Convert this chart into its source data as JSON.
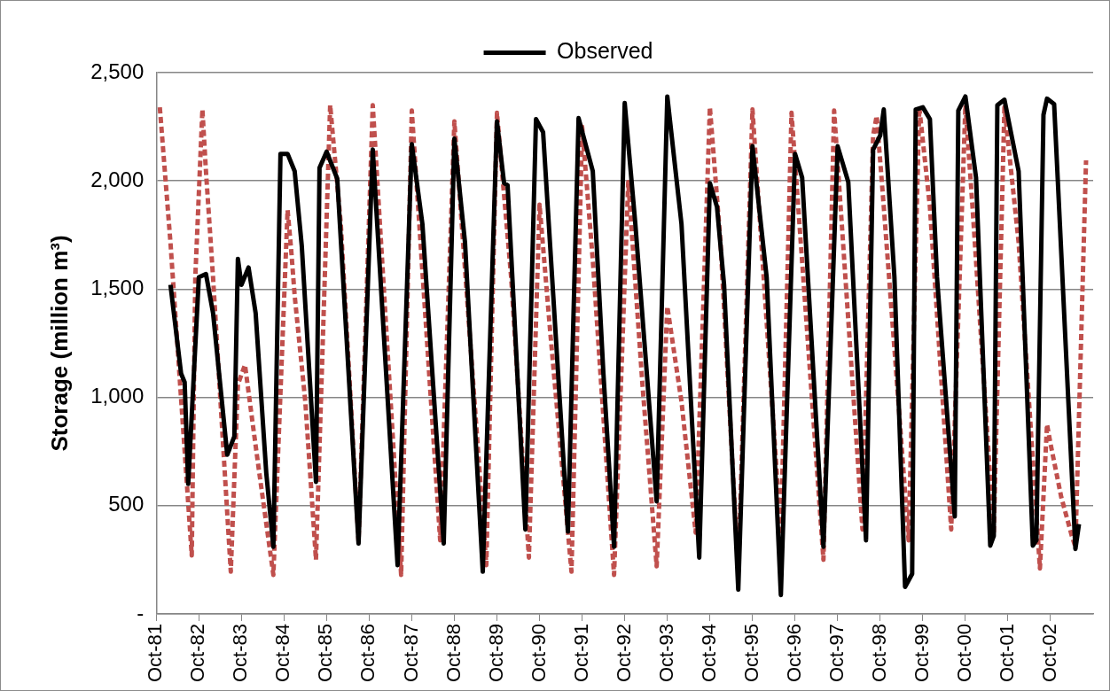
{
  "chart_data": {
    "type": "line",
    "ylabel": "Storage (million m³)",
    "legend": "top",
    "grid": "y",
    "marker": "none",
    "xlim": [
      "1981-10",
      "2003-10"
    ],
    "xticks": [
      {
        "value": "1981-10",
        "label": "Oct-81"
      },
      {
        "value": "1982-10",
        "label": "Oct-82"
      },
      {
        "value": "1983-10",
        "label": "Oct-83"
      },
      {
        "value": "1984-10",
        "label": "Oct-84"
      },
      {
        "value": "1985-10",
        "label": "Oct-85"
      },
      {
        "value": "1986-10",
        "label": "Oct-86"
      },
      {
        "value": "1987-10",
        "label": "Oct-87"
      },
      {
        "value": "1988-10",
        "label": "Oct-88"
      },
      {
        "value": "1989-10",
        "label": "Oct-89"
      },
      {
        "value": "1990-10",
        "label": "Oct-90"
      },
      {
        "value": "1991-10",
        "label": "Oct-91"
      },
      {
        "value": "1992-10",
        "label": "Oct-92"
      },
      {
        "value": "1993-10",
        "label": "Oct-93"
      },
      {
        "value": "1994-10",
        "label": "Oct-94"
      },
      {
        "value": "1995-10",
        "label": "Oct-95"
      },
      {
        "value": "1996-10",
        "label": "Oct-96"
      },
      {
        "value": "1997-10",
        "label": "Oct-97"
      },
      {
        "value": "1998-10",
        "label": "Oct-98"
      },
      {
        "value": "1999-10",
        "label": "Oct-99"
      },
      {
        "value": "2000-10",
        "label": "Oct-00"
      },
      {
        "value": "2001-10",
        "label": "Oct-01"
      },
      {
        "value": "2002-10",
        "label": "Oct-02"
      }
    ],
    "ylim": [
      0,
      2500
    ],
    "yticks": [
      {
        "value": 0,
        "label": "-"
      },
      500,
      {
        "value": 1000,
        "label": "1,000"
      },
      {
        "value": 1500,
        "label": "1,500"
      },
      {
        "value": 2000,
        "label": "2,000"
      },
      {
        "value": 2500,
        "label": "2,500"
      }
    ],
    "series": [
      {
        "name": "Observed",
        "color": "#000000",
        "line_style": "solid",
        "x": [
          "1982-02",
          "1982-05",
          "1982-06",
          "1982-07",
          "1982-10",
          "1982-12",
          "1983-02",
          "1983-06",
          "1983-08",
          "1983-09",
          "1983-10",
          "1983-12",
          "1984-02",
          "1984-05",
          "1984-07",
          "1984-09",
          "1984-11",
          "1985-01",
          "1985-03",
          "1985-07",
          "1985-08",
          "1985-10",
          "1986-01",
          "1986-07",
          "1986-11",
          "1987-06",
          "1987-10",
          "1988-01",
          "1988-07",
          "1988-10",
          "1989-01",
          "1989-06",
          "1989-10",
          "1989-12",
          "1990-01",
          "1990-06",
          "1990-09",
          "1990-11",
          "1991-06",
          "1991-09",
          "1992-01",
          "1992-04",
          "1992-07",
          "1992-10",
          "1993-01",
          "1993-07",
          "1993-10",
          "1994-02",
          "1994-07",
          "1994-10",
          "1994-12",
          "1995-02",
          "1995-06",
          "1995-10",
          "1996-02",
          "1996-06",
          "1996-10",
          "1996-12",
          "1997-06",
          "1997-10",
          "1998-01",
          "1998-06",
          "1998-08",
          "1998-10",
          "1998-11",
          "1999-02",
          "1999-05",
          "1999-07",
          "1999-08",
          "1999-10",
          "1999-12",
          "2000-02",
          "2000-07",
          "2000-08",
          "2000-10",
          "2001-01",
          "2001-05",
          "2001-06",
          "2001-07",
          "2001-09",
          "2002-01",
          "2002-05",
          "2002-06",
          "2002-08",
          "2002-09",
          "2002-11",
          "2002-12",
          "2003-05",
          "2003-06"
        ],
        "values": [
          1520,
          1110,
          1070,
          600,
          1555,
          1570,
          1390,
          735,
          820,
          1640,
          1520,
          1600,
          1390,
          650,
          310,
          2125,
          2125,
          2045,
          1700,
          610,
          2060,
          2135,
          2010,
          325,
          2145,
          225,
          2170,
          1800,
          325,
          2195,
          1715,
          195,
          2275,
          1990,
          1980,
          390,
          2285,
          2225,
          380,
          2290,
          2045,
          1110,
          310,
          2360,
          1800,
          520,
          2390,
          1800,
          260,
          1990,
          1880,
          1520,
          112,
          2160,
          1555,
          87,
          2125,
          2015,
          310,
          2160,
          1995,
          340,
          2145,
          2210,
          2330,
          1555,
          125,
          185,
          2330,
          2340,
          2285,
          1555,
          450,
          2325,
          2390,
          2015,
          315,
          360,
          2350,
          2375,
          2045,
          315,
          340,
          2305,
          2380,
          2355,
          2015,
          300,
          415
        ]
      },
      {
        "color": "#c0504d",
        "line_style": "dashed",
        "x": [
          "1981-11",
          "1982-02",
          "1982-08",
          "1982-09",
          "1982-11",
          "1982-12",
          "1983-02",
          "1983-05",
          "1983-07",
          "1983-09",
          "1983-11",
          "1984-01",
          "1984-03",
          "1984-07",
          "1984-11",
          "1984-12",
          "1985-01",
          "1985-04",
          "1985-07",
          "1985-11",
          "1986-02",
          "1986-07",
          "1986-11",
          "1987-07",
          "1987-10",
          "1988-06",
          "1988-10",
          "1989-07",
          "1989-10",
          "1990-02",
          "1990-07",
          "1990-10",
          "1991-01",
          "1991-07",
          "1991-10",
          "1992-01",
          "1992-07",
          "1992-11",
          "1993-03",
          "1993-07",
          "1993-10",
          "1994-02",
          "1994-06",
          "1994-10",
          "1995-01",
          "1995-06",
          "1995-10",
          "1996-06",
          "1996-09",
          "1997-06",
          "1997-09",
          "1998-05",
          "1998-08",
          "1998-09",
          "1998-11",
          "1999-02",
          "1999-06",
          "1999-09",
          "1999-12",
          "2000-06",
          "2000-10",
          "2000-12",
          "2001-06",
          "2001-09",
          "2002-01",
          "2002-07",
          "2002-09",
          "2002-10",
          "2003-01",
          "2003-04",
          "2003-05",
          "2003-08"
        ],
        "values": [
          2340,
          1715,
          270,
          1555,
          2330,
          2045,
          1555,
          735,
          195,
          1060,
          1150,
          900,
          655,
          180,
          1865,
          1685,
          1470,
          980,
          250,
          2350,
          1800,
          335,
          2350,
          180,
          2325,
          340,
          2275,
          225,
          2315,
          1555,
          260,
          1890,
          1305,
          195,
          2250,
          1635,
          180,
          1995,
          1060,
          220,
          1420,
          980,
          375,
          2340,
          1715,
          195,
          2330,
          365,
          2315,
          250,
          2325,
          390,
          2210,
          2300,
          1880,
          1225,
          340,
          2340,
          1880,
          390,
          2350,
          1880,
          375,
          2340,
          1715,
          210,
          875,
          785,
          540,
          360,
          310,
          2095
        ]
      }
    ]
  }
}
